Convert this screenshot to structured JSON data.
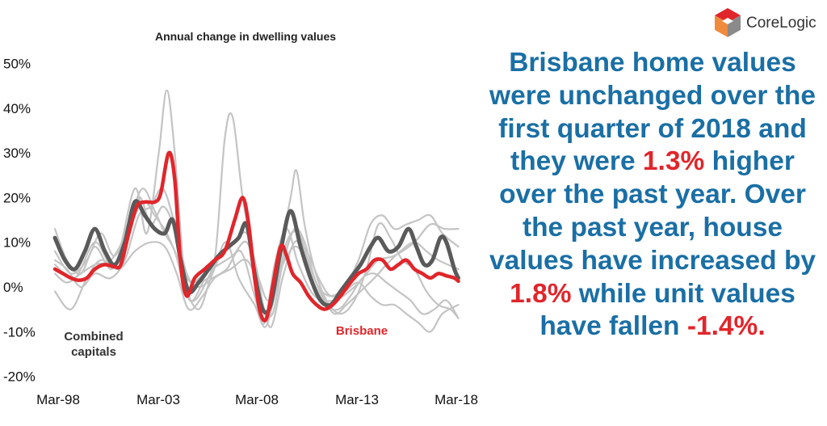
{
  "logo": {
    "text": "CoreLogic",
    "mark_colors": [
      "#e0262b",
      "#f08a3c",
      "#8a8a8a"
    ]
  },
  "headline": {
    "segments": [
      {
        "text": "Brisbane home values were unchanged over the first quarter of 2018 and they were ",
        "highlight": false
      },
      {
        "text": "1.3%",
        "highlight": true
      },
      {
        "text": " higher over the past year. Over the past year, house values have increased by ",
        "highlight": false
      },
      {
        "text": "1.8%",
        "highlight": true
      },
      {
        "text": " while unit values have fallen ",
        "highlight": false
      },
      {
        "text": "-1.4%",
        "highlight": true
      },
      {
        "text": ".",
        "highlight": true
      }
    ],
    "color": "#1a6fa5",
    "highlight_color": "#e0262b"
  },
  "chart_data": {
    "type": "line",
    "title": "Annual change in dwelling values",
    "xlabel": "",
    "ylabel": "",
    "x_ticks": [
      "Mar-98",
      "Mar-03",
      "Mar-08",
      "Mar-13",
      "Mar-18"
    ],
    "x_range": [
      1998.0,
      2018.3
    ],
    "ylim": [
      -20,
      50
    ],
    "y_ticks": [
      50,
      40,
      30,
      20,
      10,
      0,
      -10,
      -20
    ],
    "y_tick_labels": [
      "50%",
      "40%",
      "30%",
      "20%",
      "10%",
      "0%",
      "-10%",
      "-20%"
    ],
    "grid": false,
    "series": [
      {
        "name": "Combined capitals",
        "color": "#5a5a5a",
        "points": [
          [
            1998.0,
            11
          ],
          [
            1998.5,
            6
          ],
          [
            1999.0,
            4
          ],
          [
            1999.5,
            8
          ],
          [
            2000.0,
            13
          ],
          [
            2000.5,
            8
          ],
          [
            2001.0,
            5
          ],
          [
            2001.5,
            10
          ],
          [
            2002.0,
            19
          ],
          [
            2002.5,
            16
          ],
          [
            2003.0,
            13
          ],
          [
            2003.5,
            12
          ],
          [
            2003.9,
            15
          ],
          [
            2004.3,
            6
          ],
          [
            2004.7,
            -1
          ],
          [
            2005.2,
            1
          ],
          [
            2005.7,
            4
          ],
          [
            2006.2,
            7
          ],
          [
            2006.7,
            9
          ],
          [
            2007.2,
            11
          ],
          [
            2007.6,
            14
          ],
          [
            2008.0,
            3
          ],
          [
            2008.4,
            -5
          ],
          [
            2008.8,
            -4
          ],
          [
            2009.3,
            8
          ],
          [
            2009.8,
            17
          ],
          [
            2010.3,
            9
          ],
          [
            2010.8,
            2
          ],
          [
            2011.3,
            -3
          ],
          [
            2011.8,
            -4
          ],
          [
            2012.3,
            -1
          ],
          [
            2012.8,
            2
          ],
          [
            2013.3,
            5
          ],
          [
            2013.8,
            9
          ],
          [
            2014.2,
            11
          ],
          [
            2014.7,
            8
          ],
          [
            2015.2,
            9
          ],
          [
            2015.7,
            13
          ],
          [
            2016.1,
            9
          ],
          [
            2016.5,
            5
          ],
          [
            2016.9,
            6
          ],
          [
            2017.3,
            11
          ],
          [
            2017.6,
            10
          ],
          [
            2018.0,
            4
          ],
          [
            2018.2,
            2
          ]
        ]
      },
      {
        "name": "Brisbane",
        "color": "#e0262b",
        "points": [
          [
            1998.0,
            4
          ],
          [
            1998.4,
            3
          ],
          [
            1998.8,
            2
          ],
          [
            1999.2,
            1.5
          ],
          [
            1999.6,
            2
          ],
          [
            2000.0,
            4
          ],
          [
            2000.5,
            5
          ],
          [
            2001.0,
            4.5
          ],
          [
            2001.3,
            5
          ],
          [
            2001.7,
            12
          ],
          [
            2002.1,
            18
          ],
          [
            2002.5,
            19
          ],
          [
            2003.0,
            19
          ],
          [
            2003.3,
            21
          ],
          [
            2003.7,
            30
          ],
          [
            2004.0,
            24
          ],
          [
            2004.3,
            5
          ],
          [
            2004.6,
            -2
          ],
          [
            2005.0,
            2
          ],
          [
            2005.5,
            4
          ],
          [
            2006.0,
            6
          ],
          [
            2006.5,
            8
          ],
          [
            2007.0,
            15
          ],
          [
            2007.4,
            20
          ],
          [
            2007.7,
            14
          ],
          [
            2008.0,
            2
          ],
          [
            2008.3,
            -6
          ],
          [
            2008.6,
            -7
          ],
          [
            2008.9,
            0
          ],
          [
            2009.3,
            9
          ],
          [
            2009.6,
            7
          ],
          [
            2009.9,
            3
          ],
          [
            2010.3,
            1
          ],
          [
            2010.7,
            -2
          ],
          [
            2011.1,
            -4
          ],
          [
            2011.5,
            -5
          ],
          [
            2011.9,
            -4
          ],
          [
            2012.3,
            -2
          ],
          [
            2012.8,
            1
          ],
          [
            2013.2,
            3
          ],
          [
            2013.6,
            4
          ],
          [
            2014.0,
            6
          ],
          [
            2014.4,
            6
          ],
          [
            2014.8,
            4
          ],
          [
            2015.2,
            5
          ],
          [
            2015.6,
            6
          ],
          [
            2016.0,
            4
          ],
          [
            2016.4,
            3
          ],
          [
            2016.8,
            2
          ],
          [
            2017.2,
            3
          ],
          [
            2017.6,
            2.5
          ],
          [
            2018.0,
            2
          ],
          [
            2018.2,
            1.3
          ]
        ]
      },
      {
        "name": "",
        "color": "#c4c4c4",
        "points": [
          [
            1998.0,
            5
          ],
          [
            1999.0,
            2
          ],
          [
            2000.0,
            10
          ],
          [
            2001.0,
            5
          ],
          [
            2002.0,
            22
          ],
          [
            2002.6,
            12
          ],
          [
            2003.2,
            30
          ],
          [
            2003.6,
            44
          ],
          [
            2004.0,
            30
          ],
          [
            2004.5,
            2
          ],
          [
            2005.0,
            -3
          ],
          [
            2006.0,
            5
          ],
          [
            2006.6,
            10
          ],
          [
            2007.2,
            2
          ],
          [
            2008.0,
            -4
          ],
          [
            2008.5,
            -8
          ],
          [
            2009.0,
            5
          ],
          [
            2009.6,
            13
          ],
          [
            2010.2,
            5
          ],
          [
            2011.0,
            -2
          ],
          [
            2012.0,
            -3
          ],
          [
            2013.0,
            0
          ],
          [
            2013.6,
            3
          ],
          [
            2014.2,
            6
          ],
          [
            2015.0,
            7
          ],
          [
            2016.0,
            10
          ],
          [
            2016.8,
            14
          ],
          [
            2017.5,
            13
          ],
          [
            2018.2,
            13
          ]
        ]
      },
      {
        "name": "",
        "color": "#c4c4c4",
        "points": [
          [
            1998.0,
            13
          ],
          [
            1998.6,
            6
          ],
          [
            1999.3,
            3
          ],
          [
            2000.0,
            9
          ],
          [
            2000.8,
            4
          ],
          [
            2001.5,
            9
          ],
          [
            2002.2,
            20
          ],
          [
            2002.8,
            14
          ],
          [
            2003.4,
            18
          ],
          [
            2003.9,
            14
          ],
          [
            2004.3,
            5
          ],
          [
            2004.8,
            -3
          ],
          [
            2005.4,
            1
          ],
          [
            2006.0,
            6
          ],
          [
            2006.5,
            33
          ],
          [
            2006.9,
            38
          ],
          [
            2007.4,
            20
          ],
          [
            2007.9,
            8
          ],
          [
            2008.4,
            -4
          ],
          [
            2008.9,
            -6
          ],
          [
            2009.4,
            5
          ],
          [
            2010.0,
            13
          ],
          [
            2010.5,
            10
          ],
          [
            2011.0,
            2
          ],
          [
            2011.6,
            -4
          ],
          [
            2012.2,
            -5
          ],
          [
            2012.8,
            -2
          ],
          [
            2013.4,
            2
          ],
          [
            2014.0,
            3
          ],
          [
            2014.6,
            1
          ],
          [
            2015.2,
            -1
          ],
          [
            2015.8,
            -3
          ],
          [
            2016.4,
            -6
          ],
          [
            2017.0,
            -5
          ],
          [
            2017.6,
            -3
          ],
          [
            2018.2,
            -7
          ]
        ]
      },
      {
        "name": "",
        "color": "#c4c4c4",
        "points": [
          [
            1998.0,
            8
          ],
          [
            1998.8,
            3
          ],
          [
            1999.6,
            6
          ],
          [
            2000.3,
            12
          ],
          [
            2001.0,
            7
          ],
          [
            2001.8,
            16
          ],
          [
            2002.4,
            22
          ],
          [
            2003.0,
            17
          ],
          [
            2003.5,
            12
          ],
          [
            2004.0,
            8
          ],
          [
            2004.5,
            0
          ],
          [
            2005.2,
            -5
          ],
          [
            2005.8,
            2
          ],
          [
            2006.4,
            8
          ],
          [
            2007.0,
            10
          ],
          [
            2007.6,
            12
          ],
          [
            2008.1,
            4
          ],
          [
            2008.6,
            -6
          ],
          [
            2009.2,
            6
          ],
          [
            2009.8,
            20
          ],
          [
            2010.1,
            26
          ],
          [
            2010.5,
            14
          ],
          [
            2011.0,
            4
          ],
          [
            2011.6,
            -3
          ],
          [
            2012.3,
            -6
          ],
          [
            2013.0,
            -3
          ],
          [
            2013.6,
            4
          ],
          [
            2014.2,
            14
          ],
          [
            2014.8,
            11
          ],
          [
            2015.4,
            6
          ],
          [
            2016.0,
            4
          ],
          [
            2016.6,
            -1
          ],
          [
            2017.2,
            -4
          ],
          [
            2017.8,
            -5
          ],
          [
            2018.2,
            -7
          ]
        ]
      },
      {
        "name": "",
        "color": "#c4c4c4",
        "points": [
          [
            1998.0,
            -1
          ],
          [
            1998.8,
            -5
          ],
          [
            1999.6,
            2
          ],
          [
            2000.3,
            6
          ],
          [
            2001.2,
            4
          ],
          [
            2002.0,
            8
          ],
          [
            2002.8,
            10
          ],
          [
            2003.5,
            9
          ],
          [
            2004.1,
            3
          ],
          [
            2004.7,
            -5
          ],
          [
            2005.4,
            -2
          ],
          [
            2006.0,
            2
          ],
          [
            2006.8,
            4
          ],
          [
            2007.6,
            6
          ],
          [
            2008.2,
            0
          ],
          [
            2008.8,
            -9
          ],
          [
            2009.4,
            2
          ],
          [
            2010.0,
            10
          ],
          [
            2010.6,
            8
          ],
          [
            2011.2,
            2
          ],
          [
            2011.8,
            -2
          ],
          [
            2012.5,
            -1
          ],
          [
            2013.2,
            1
          ],
          [
            2013.8,
            -2
          ],
          [
            2014.4,
            -4
          ],
          [
            2015.0,
            -4
          ],
          [
            2015.6,
            -6
          ],
          [
            2016.2,
            -8
          ],
          [
            2016.8,
            -10
          ],
          [
            2017.4,
            -6
          ],
          [
            2018.2,
            -4
          ]
        ]
      },
      {
        "name": "",
        "color": "#c4c4c4",
        "points": [
          [
            1998.0,
            3
          ],
          [
            1998.6,
            1
          ],
          [
            1999.3,
            3
          ],
          [
            2000.0,
            5
          ],
          [
            2000.8,
            6
          ],
          [
            2001.6,
            12
          ],
          [
            2002.4,
            19
          ],
          [
            2003.0,
            16
          ],
          [
            2003.6,
            12
          ],
          [
            2004.2,
            6
          ],
          [
            2004.8,
            1
          ],
          [
            2005.5,
            3
          ],
          [
            2006.2,
            5
          ],
          [
            2006.9,
            7
          ],
          [
            2007.6,
            10
          ],
          [
            2008.2,
            2
          ],
          [
            2008.7,
            -3
          ],
          [
            2009.3,
            4
          ],
          [
            2010.0,
            9
          ],
          [
            2010.6,
            6
          ],
          [
            2011.2,
            0
          ],
          [
            2011.8,
            -2
          ],
          [
            2012.5,
            0
          ],
          [
            2013.2,
            6
          ],
          [
            2013.8,
            14
          ],
          [
            2014.4,
            16
          ],
          [
            2015.0,
            13
          ],
          [
            2015.6,
            14
          ],
          [
            2016.2,
            15
          ],
          [
            2016.8,
            16
          ],
          [
            2017.4,
            12
          ],
          [
            2018.2,
            9
          ]
        ]
      },
      {
        "name": "",
        "color": "#c4c4c4",
        "points": [
          [
            1998.0,
            6
          ],
          [
            1998.6,
            4
          ],
          [
            1999.3,
            0
          ],
          [
            2000.0,
            3
          ],
          [
            2000.8,
            2
          ],
          [
            2001.5,
            6
          ],
          [
            2002.2,
            16
          ],
          [
            2002.8,
            18
          ],
          [
            2003.4,
            22
          ],
          [
            2004.0,
            14
          ],
          [
            2004.6,
            3
          ],
          [
            2005.2,
            0
          ],
          [
            2005.9,
            2
          ],
          [
            2006.6,
            4
          ],
          [
            2007.3,
            8
          ],
          [
            2008.0,
            -2
          ],
          [
            2008.5,
            -9
          ],
          [
            2009.0,
            -2
          ],
          [
            2009.6,
            10
          ],
          [
            2010.2,
            12
          ],
          [
            2010.8,
            4
          ],
          [
            2011.4,
            -2
          ],
          [
            2012.0,
            -6
          ],
          [
            2012.6,
            -4
          ],
          [
            2013.3,
            -1
          ],
          [
            2014.0,
            2
          ],
          [
            2014.6,
            5
          ],
          [
            2015.3,
            8
          ],
          [
            2016.0,
            10
          ],
          [
            2016.6,
            8
          ],
          [
            2017.2,
            6
          ],
          [
            2018.2,
            4
          ]
        ]
      }
    ],
    "annotations": [
      {
        "text": "Combined capitals",
        "lines": [
          "Combined",
          "capitals"
        ],
        "color": "#333333"
      },
      {
        "text": "Brisbane",
        "lines": [
          "Brisbane"
        ],
        "color": "#e0262b"
      }
    ]
  }
}
